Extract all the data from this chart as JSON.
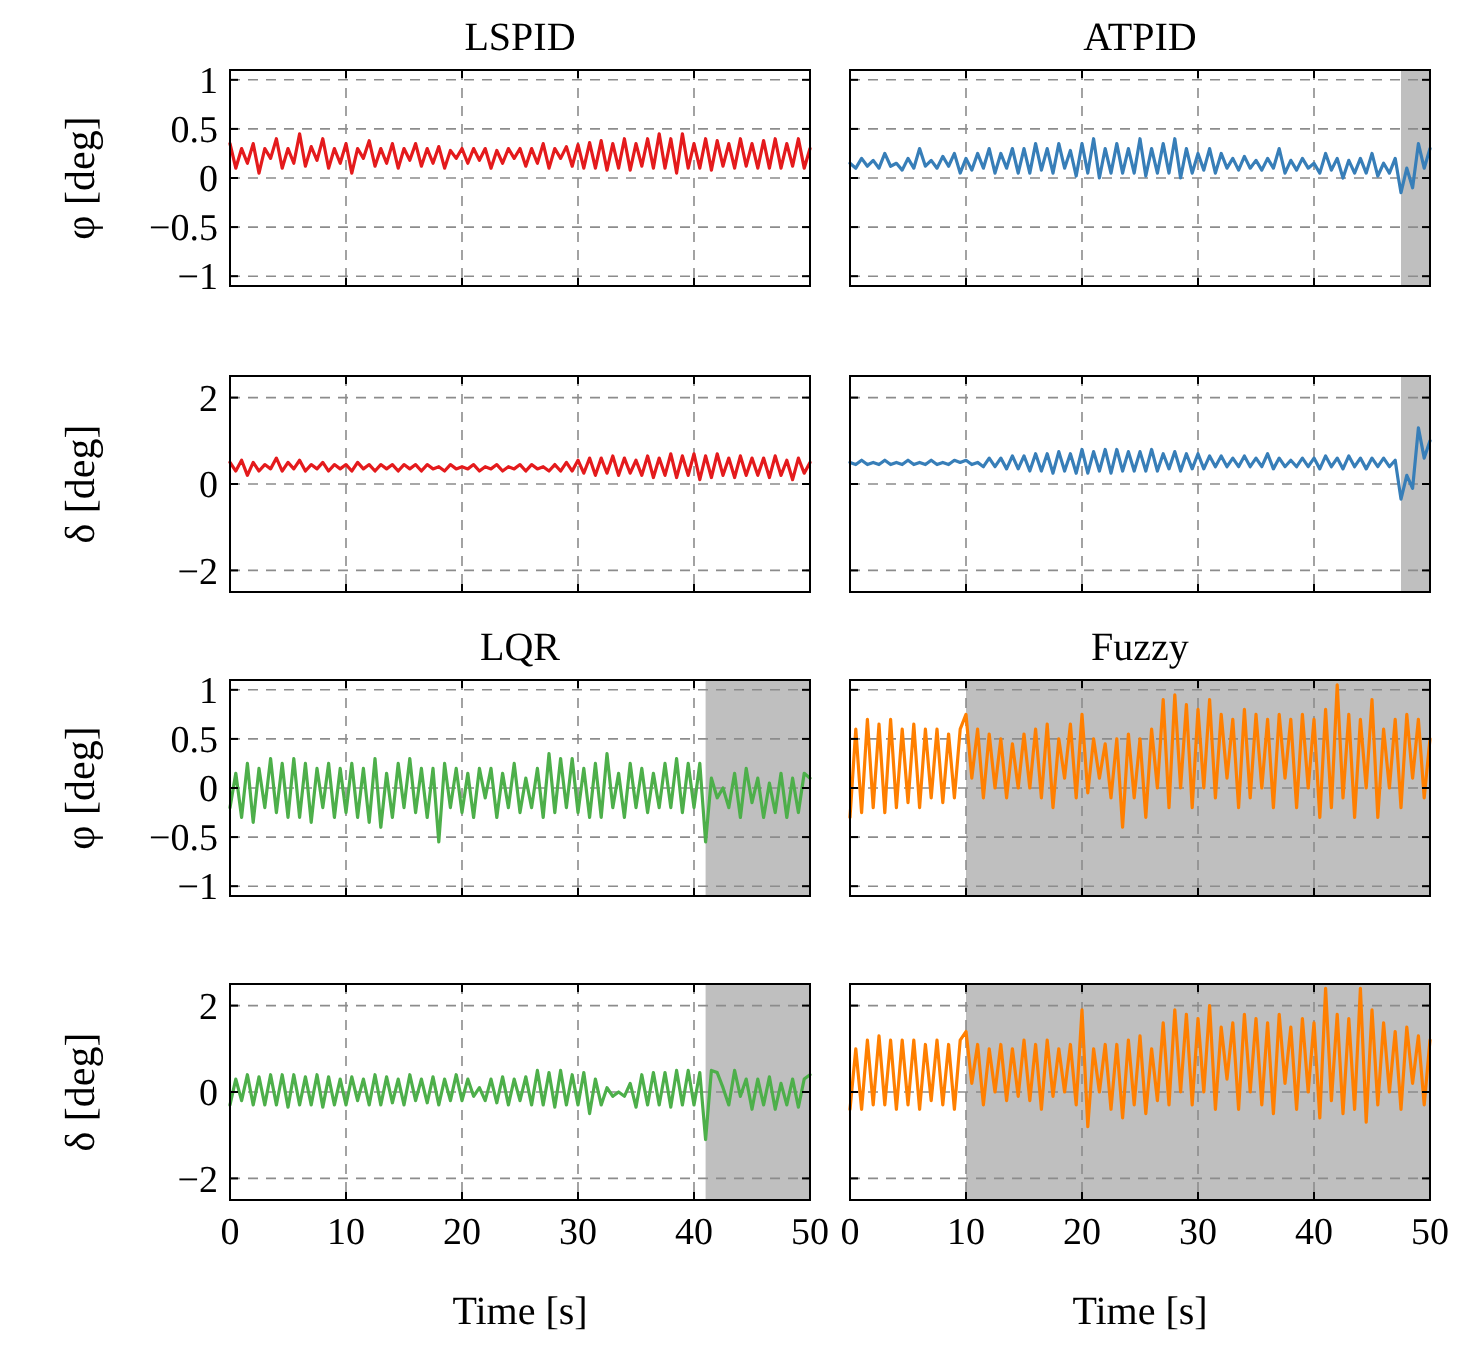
{
  "chart_data": [
    {
      "type": "line",
      "title": "LSPID",
      "ylabel": "φ [deg]",
      "tick_labels": "y",
      "grid": true,
      "xlim": [
        0,
        50
      ],
      "ylim": [
        -1.1,
        1.1
      ],
      "xticks": [
        0,
        10,
        20,
        30,
        40,
        50
      ],
      "yticks": [
        {
          "value": -1,
          "label": "−1"
        },
        {
          "value": -0.5,
          "label": "−0.5"
        },
        0,
        0.5,
        1
      ],
      "x": [
        0,
        0.5,
        1,
        1.5,
        2,
        2.5,
        3,
        3.5,
        4,
        4.5,
        5,
        5.5,
        6,
        6.5,
        7,
        7.5,
        8,
        8.5,
        9,
        9.5,
        10,
        10.5,
        11,
        11.5,
        12,
        12.5,
        13,
        13.5,
        14,
        14.5,
        15,
        15.5,
        16,
        16.5,
        17,
        17.5,
        18,
        18.5,
        19,
        19.5,
        20,
        20.5,
        21,
        21.5,
        22,
        22.5,
        23,
        23.5,
        24,
        24.5,
        25,
        25.5,
        26,
        26.5,
        27,
        27.5,
        28,
        28.5,
        29,
        29.5,
        30,
        30.5,
        31,
        31.5,
        32,
        32.5,
        33,
        33.5,
        34,
        34.5,
        35,
        35.5,
        36,
        36.5,
        37,
        37.5,
        38,
        38.5,
        39,
        39.5,
        40,
        40.5,
        41,
        41.5,
        42,
        42.5,
        43,
        43.5,
        44,
        44.5,
        45,
        45.5,
        46,
        46.5,
        47,
        47.5,
        48,
        48.5,
        49,
        49.5,
        50
      ],
      "series": [
        {
          "color": "#e41a1c",
          "values": [
            0.35,
            0.1,
            0.3,
            0.15,
            0.35,
            0.05,
            0.3,
            0.2,
            0.4,
            0.1,
            0.3,
            0.15,
            0.45,
            0.12,
            0.32,
            0.18,
            0.4,
            0.1,
            0.3,
            0.15,
            0.35,
            0.05,
            0.3,
            0.2,
            0.38,
            0.12,
            0.3,
            0.15,
            0.35,
            0.1,
            0.3,
            0.18,
            0.35,
            0.12,
            0.3,
            0.15,
            0.32,
            0.1,
            0.28,
            0.2,
            0.3,
            0.15,
            0.3,
            0.18,
            0.3,
            0.1,
            0.28,
            0.15,
            0.3,
            0.2,
            0.3,
            0.12,
            0.3,
            0.15,
            0.35,
            0.1,
            0.3,
            0.2,
            0.32,
            0.12,
            0.34,
            0.1,
            0.36,
            0.1,
            0.38,
            0.08,
            0.35,
            0.1,
            0.4,
            0.08,
            0.35,
            0.12,
            0.4,
            0.1,
            0.45,
            0.1,
            0.4,
            0.05,
            0.45,
            0.1,
            0.35,
            0.1,
            0.4,
            0.08,
            0.38,
            0.12,
            0.35,
            0.1,
            0.4,
            0.12,
            0.35,
            0.1,
            0.38,
            0.1,
            0.4,
            0.1,
            0.35,
            0.12,
            0.4,
            0.1,
            0.3
          ]
        }
      ]
    },
    {
      "type": "line",
      "title": "ATPID",
      "tick_labels": false,
      "grid": true,
      "xlim": [
        0,
        50
      ],
      "ylim": [
        -1.1,
        1.1
      ],
      "xticks": [
        0,
        10,
        20,
        30,
        40,
        50
      ],
      "yticks": [
        {
          "value": -1,
          "label": null
        },
        {
          "value": -0.5,
          "label": null
        },
        {
          "value": 0,
          "label": null
        },
        {
          "value": 0.5,
          "label": null
        },
        {
          "value": 1,
          "label": null
        }
      ],
      "bands": [
        {
          "axis": "x",
          "from": 47.5,
          "to": 50,
          "color": "#bfbfbf"
        }
      ],
      "x": [
        0,
        0.5,
        1,
        1.5,
        2,
        2.5,
        3,
        3.5,
        4,
        4.5,
        5,
        5.5,
        6,
        6.5,
        7,
        7.5,
        8,
        8.5,
        9,
        9.5,
        10,
        10.5,
        11,
        11.5,
        12,
        12.5,
        13,
        13.5,
        14,
        14.5,
        15,
        15.5,
        16,
        16.5,
        17,
        17.5,
        18,
        18.5,
        19,
        19.5,
        20,
        20.5,
        21,
        21.5,
        22,
        22.5,
        23,
        23.5,
        24,
        24.5,
        25,
        25.5,
        26,
        26.5,
        27,
        27.5,
        28,
        28.5,
        29,
        29.5,
        30,
        30.5,
        31,
        31.5,
        32,
        32.5,
        33,
        33.5,
        34,
        34.5,
        35,
        35.5,
        36,
        36.5,
        37,
        37.5,
        38,
        38.5,
        39,
        39.5,
        40,
        40.5,
        41,
        41.5,
        42,
        42.5,
        43,
        43.5,
        44,
        44.5,
        45,
        45.5,
        46,
        46.5,
        47,
        47.5,
        48,
        48.5,
        49,
        49.5,
        50
      ],
      "series": [
        {
          "color": "#377eb8",
          "values": [
            0.15,
            0.1,
            0.2,
            0.12,
            0.18,
            0.1,
            0.25,
            0.12,
            0.15,
            0.08,
            0.2,
            0.1,
            0.3,
            0.12,
            0.18,
            0.1,
            0.22,
            0.12,
            0.25,
            0.05,
            0.2,
            0.08,
            0.25,
            0.1,
            0.3,
            0.05,
            0.25,
            0.1,
            0.3,
            0.05,
            0.3,
            0.05,
            0.35,
            0.08,
            0.3,
            0.05,
            0.35,
            0.1,
            0.28,
            0.02,
            0.35,
            0.05,
            0.4,
            0.0,
            0.3,
            0.05,
            0.35,
            0.05,
            0.3,
            0.05,
            0.4,
            0.02,
            0.3,
            0.05,
            0.35,
            0.05,
            0.4,
            0.0,
            0.3,
            0.05,
            0.25,
            0.08,
            0.3,
            0.05,
            0.25,
            0.1,
            0.2,
            0.08,
            0.22,
            0.1,
            0.18,
            0.08,
            0.2,
            0.1,
            0.3,
            0.05,
            0.18,
            0.08,
            0.2,
            0.1,
            0.15,
            0.05,
            0.25,
            0.08,
            0.2,
            0.0,
            0.18,
            0.05,
            0.2,
            0.05,
            0.25,
            0.02,
            0.15,
            0.05,
            0.2,
            -0.15,
            0.1,
            -0.1,
            0.35,
            0.1,
            0.3
          ]
        }
      ]
    },
    {
      "type": "line",
      "ylabel": "δ [deg]",
      "tick_labels": "y",
      "grid": true,
      "xlim": [
        0,
        50
      ],
      "ylim": [
        -2.5,
        2.5
      ],
      "xticks": [
        0,
        10,
        20,
        30,
        40,
        50
      ],
      "yticks": [
        {
          "value": -2,
          "label": "−2"
        },
        0,
        2
      ],
      "x": [
        0,
        0.5,
        1,
        1.5,
        2,
        2.5,
        3,
        3.5,
        4,
        4.5,
        5,
        5.5,
        6,
        6.5,
        7,
        7.5,
        8,
        8.5,
        9,
        9.5,
        10,
        10.5,
        11,
        11.5,
        12,
        12.5,
        13,
        13.5,
        14,
        14.5,
        15,
        15.5,
        16,
        16.5,
        17,
        17.5,
        18,
        18.5,
        19,
        19.5,
        20,
        20.5,
        21,
        21.5,
        22,
        22.5,
        23,
        23.5,
        24,
        24.5,
        25,
        25.5,
        26,
        26.5,
        27,
        27.5,
        28,
        28.5,
        29,
        29.5,
        30,
        30.5,
        31,
        31.5,
        32,
        32.5,
        33,
        33.5,
        34,
        34.5,
        35,
        35.5,
        36,
        36.5,
        37,
        37.5,
        38,
        38.5,
        39,
        39.5,
        40,
        40.5,
        41,
        41.5,
        42,
        42.5,
        43,
        43.5,
        44,
        44.5,
        45,
        45.5,
        46,
        46.5,
        47,
        47.5,
        48,
        48.5,
        49,
        49.5,
        50
      ],
      "series": [
        {
          "color": "#e41a1c",
          "values": [
            0.5,
            0.3,
            0.55,
            0.2,
            0.5,
            0.3,
            0.45,
            0.35,
            0.6,
            0.3,
            0.5,
            0.35,
            0.55,
            0.3,
            0.45,
            0.35,
            0.5,
            0.3,
            0.45,
            0.35,
            0.45,
            0.3,
            0.5,
            0.35,
            0.45,
            0.3,
            0.45,
            0.35,
            0.45,
            0.3,
            0.45,
            0.35,
            0.45,
            0.3,
            0.45,
            0.35,
            0.4,
            0.3,
            0.45,
            0.35,
            0.4,
            0.35,
            0.45,
            0.3,
            0.4,
            0.35,
            0.45,
            0.3,
            0.4,
            0.35,
            0.45,
            0.3,
            0.45,
            0.35,
            0.4,
            0.3,
            0.45,
            0.3,
            0.5,
            0.3,
            0.55,
            0.25,
            0.6,
            0.2,
            0.6,
            0.25,
            0.65,
            0.2,
            0.6,
            0.25,
            0.55,
            0.2,
            0.65,
            0.15,
            0.6,
            0.2,
            0.7,
            0.15,
            0.65,
            0.2,
            0.7,
            0.1,
            0.65,
            0.15,
            0.7,
            0.2,
            0.6,
            0.15,
            0.65,
            0.2,
            0.6,
            0.2,
            0.6,
            0.15,
            0.65,
            0.2,
            0.55,
            0.1,
            0.6,
            0.25,
            0.5
          ]
        }
      ]
    },
    {
      "type": "line",
      "tick_labels": false,
      "grid": true,
      "xlim": [
        0,
        50
      ],
      "ylim": [
        -2.5,
        2.5
      ],
      "xticks": [
        0,
        10,
        20,
        30,
        40,
        50
      ],
      "yticks": [
        {
          "value": -2,
          "label": null
        },
        {
          "value": 0,
          "label": null
        },
        {
          "value": 2,
          "label": null
        }
      ],
      "bands": [
        {
          "axis": "x",
          "from": 47.5,
          "to": 50,
          "color": "#bfbfbf"
        }
      ],
      "x": [
        0,
        0.5,
        1,
        1.5,
        2,
        2.5,
        3,
        3.5,
        4,
        4.5,
        5,
        5.5,
        6,
        6.5,
        7,
        7.5,
        8,
        8.5,
        9,
        9.5,
        10,
        10.5,
        11,
        11.5,
        12,
        12.5,
        13,
        13.5,
        14,
        14.5,
        15,
        15.5,
        16,
        16.5,
        17,
        17.5,
        18,
        18.5,
        19,
        19.5,
        20,
        20.5,
        21,
        21.5,
        22,
        22.5,
        23,
        23.5,
        24,
        24.5,
        25,
        25.5,
        26,
        26.5,
        27,
        27.5,
        28,
        28.5,
        29,
        29.5,
        30,
        30.5,
        31,
        31.5,
        32,
        32.5,
        33,
        33.5,
        34,
        34.5,
        35,
        35.5,
        36,
        36.5,
        37,
        37.5,
        38,
        38.5,
        39,
        39.5,
        40,
        40.5,
        41,
        41.5,
        42,
        42.5,
        43,
        43.5,
        44,
        44.5,
        45,
        45.5,
        46,
        46.5,
        47,
        47.5,
        48,
        48.5,
        49,
        49.5,
        50
      ],
      "series": [
        {
          "color": "#377eb8",
          "values": [
            0.5,
            0.45,
            0.55,
            0.45,
            0.5,
            0.45,
            0.55,
            0.45,
            0.5,
            0.45,
            0.55,
            0.45,
            0.5,
            0.45,
            0.55,
            0.45,
            0.5,
            0.45,
            0.55,
            0.5,
            0.55,
            0.45,
            0.5,
            0.4,
            0.6,
            0.4,
            0.6,
            0.35,
            0.65,
            0.35,
            0.65,
            0.3,
            0.7,
            0.3,
            0.7,
            0.25,
            0.75,
            0.3,
            0.7,
            0.25,
            0.8,
            0.25,
            0.75,
            0.3,
            0.8,
            0.25,
            0.8,
            0.3,
            0.75,
            0.3,
            0.75,
            0.3,
            0.8,
            0.3,
            0.7,
            0.35,
            0.75,
            0.3,
            0.7,
            0.35,
            0.7,
            0.35,
            0.65,
            0.4,
            0.65,
            0.4,
            0.6,
            0.4,
            0.65,
            0.4,
            0.6,
            0.4,
            0.7,
            0.35,
            0.6,
            0.4,
            0.55,
            0.4,
            0.6,
            0.4,
            0.6,
            0.35,
            0.65,
            0.4,
            0.6,
            0.35,
            0.65,
            0.4,
            0.6,
            0.35,
            0.6,
            0.4,
            0.6,
            0.4,
            0.55,
            -0.35,
            0.2,
            -0.1,
            1.3,
            0.6,
            1.0
          ]
        }
      ]
    },
    {
      "type": "line",
      "title": "LQR",
      "ylabel": "φ [deg]",
      "tick_labels": "y",
      "grid": true,
      "xlim": [
        0,
        50
      ],
      "ylim": [
        -1.1,
        1.1
      ],
      "xticks": [
        0,
        10,
        20,
        30,
        40,
        50
      ],
      "yticks": [
        {
          "value": -1,
          "label": "−1"
        },
        {
          "value": -0.5,
          "label": "−0.5"
        },
        0,
        0.5,
        1
      ],
      "bands": [
        {
          "axis": "x",
          "from": 41,
          "to": 50,
          "color": "#bfbfbf"
        }
      ],
      "x": [
        0,
        0.5,
        1,
        1.5,
        2,
        2.5,
        3,
        3.5,
        4,
        4.5,
        5,
        5.5,
        6,
        6.5,
        7,
        7.5,
        8,
        8.5,
        9,
        9.5,
        10,
        10.5,
        11,
        11.5,
        12,
        12.5,
        13,
        13.5,
        14,
        14.5,
        15,
        15.5,
        16,
        16.5,
        17,
        17.5,
        18,
        18.5,
        19,
        19.5,
        20,
        20.5,
        21,
        21.5,
        22,
        22.5,
        23,
        23.5,
        24,
        24.5,
        25,
        25.5,
        26,
        26.5,
        27,
        27.5,
        28,
        28.5,
        29,
        29.5,
        30,
        30.5,
        31,
        31.5,
        32,
        32.5,
        33,
        33.5,
        34,
        34.5,
        35,
        35.5,
        36,
        36.5,
        37,
        37.5,
        38,
        38.5,
        39,
        39.5,
        40,
        40.5,
        41,
        41.5,
        42,
        42.5,
        43,
        43.5,
        44,
        44.5,
        45,
        45.5,
        46,
        46.5,
        47,
        47.5,
        48,
        48.5,
        49,
        49.5,
        50
      ],
      "series": [
        {
          "color": "#4daf4a",
          "values": [
            -0.2,
            0.15,
            -0.3,
            0.25,
            -0.35,
            0.2,
            -0.2,
            0.3,
            -0.25,
            0.25,
            -0.3,
            0.3,
            -0.3,
            0.25,
            -0.35,
            0.2,
            -0.2,
            0.25,
            -0.3,
            0.2,
            -0.25,
            0.25,
            -0.3,
            0.2,
            -0.35,
            0.3,
            -0.4,
            0.15,
            -0.3,
            0.25,
            -0.2,
            0.3,
            -0.25,
            0.2,
            -0.3,
            0.2,
            -0.55,
            0.25,
            -0.2,
            0.2,
            -0.25,
            0.15,
            -0.3,
            0.2,
            -0.1,
            0.2,
            -0.3,
            0.15,
            -0.2,
            0.25,
            -0.25,
            0.1,
            -0.2,
            0.2,
            -0.3,
            0.35,
            -0.25,
            0.3,
            -0.2,
            0.3,
            -0.25,
            0.2,
            -0.3,
            0.25,
            -0.3,
            0.35,
            -0.2,
            0.15,
            -0.3,
            0.25,
            -0.2,
            0.2,
            -0.25,
            0.15,
            -0.2,
            0.25,
            -0.2,
            0.3,
            -0.25,
            0.25,
            -0.2,
            0.25,
            -0.55,
            0.1,
            -0.1,
            0.0,
            -0.2,
            0.15,
            -0.3,
            0.2,
            -0.15,
            0.1,
            -0.3,
            0.05,
            -0.25,
            0.15,
            -0.3,
            0.1,
            -0.25,
            0.15,
            0.1
          ]
        }
      ]
    },
    {
      "type": "line",
      "title": "Fuzzy",
      "tick_labels": false,
      "grid": true,
      "xlim": [
        0,
        50
      ],
      "ylim": [
        -1.1,
        1.1
      ],
      "xticks": [
        0,
        10,
        20,
        30,
        40,
        50
      ],
      "yticks": [
        {
          "value": -1,
          "label": null
        },
        {
          "value": -0.5,
          "label": null
        },
        {
          "value": 0,
          "label": null
        },
        {
          "value": 0.5,
          "label": null
        },
        {
          "value": 1,
          "label": null
        }
      ],
      "bands": [
        {
          "axis": "x",
          "from": 10,
          "to": 50,
          "color": "#bfbfbf"
        }
      ],
      "x": [
        0,
        0.5,
        1,
        1.5,
        2,
        2.5,
        3,
        3.5,
        4,
        4.5,
        5,
        5.5,
        6,
        6.5,
        7,
        7.5,
        8,
        8.5,
        9,
        9.5,
        10,
        10.5,
        11,
        11.5,
        12,
        12.5,
        13,
        13.5,
        14,
        14.5,
        15,
        15.5,
        16,
        16.5,
        17,
        17.5,
        18,
        18.5,
        19,
        19.5,
        20,
        20.5,
        21,
        21.5,
        22,
        22.5,
        23,
        23.5,
        24,
        24.5,
        25,
        25.5,
        26,
        26.5,
        27,
        27.5,
        28,
        28.5,
        29,
        29.5,
        30,
        30.5,
        31,
        31.5,
        32,
        32.5,
        33,
        33.5,
        34,
        34.5,
        35,
        35.5,
        36,
        36.5,
        37,
        37.5,
        38,
        38.5,
        39,
        39.5,
        40,
        40.5,
        41,
        41.5,
        42,
        42.5,
        43,
        43.5,
        44,
        44.5,
        45,
        45.5,
        46,
        46.5,
        47,
        47.5,
        48,
        48.5,
        49,
        49.5,
        50
      ],
      "series": [
        {
          "color": "#ff7f00",
          "values": [
            -0.3,
            0.6,
            -0.25,
            0.7,
            -0.2,
            0.65,
            -0.25,
            0.7,
            -0.2,
            0.6,
            -0.15,
            0.65,
            -0.2,
            0.6,
            -0.1,
            0.6,
            -0.15,
            0.55,
            -0.1,
            0.6,
            0.75,
            0.1,
            0.6,
            -0.1,
            0.55,
            0.0,
            0.5,
            -0.1,
            0.45,
            0.0,
            0.55,
            0.0,
            0.6,
            -0.1,
            0.65,
            -0.2,
            0.5,
            0.1,
            0.65,
            -0.1,
            0.75,
            -0.05,
            0.5,
            0.1,
            0.45,
            -0.1,
            0.5,
            -0.4,
            0.55,
            -0.1,
            0.5,
            -0.3,
            0.6,
            0.0,
            0.9,
            -0.2,
            0.95,
            0.0,
            0.85,
            -0.2,
            0.8,
            0.0,
            0.9,
            -0.1,
            0.75,
            0.1,
            0.7,
            -0.2,
            0.8,
            -0.1,
            0.75,
            0.0,
            0.7,
            -0.2,
            0.75,
            0.1,
            0.7,
            -0.2,
            0.75,
            0.0,
            0.7,
            -0.3,
            0.8,
            -0.2,
            1.05,
            -0.1,
            0.75,
            -0.3,
            0.7,
            0.0,
            0.9,
            -0.3,
            0.6,
            0.0,
            0.7,
            -0.2,
            0.75,
            0.1,
            0.7,
            -0.1,
            0.5
          ]
        }
      ]
    },
    {
      "type": "line",
      "ylabel": "δ [deg]",
      "xlabel": "Time [s]",
      "grid": true,
      "xlim": [
        0,
        50
      ],
      "ylim": [
        -2.5,
        2.5
      ],
      "xticks": [
        0,
        10,
        20,
        30,
        40,
        50
      ],
      "yticks": [
        {
          "value": -2,
          "label": "−2"
        },
        0,
        2
      ],
      "bands": [
        {
          "axis": "x",
          "from": 41,
          "to": 50,
          "color": "#bfbfbf"
        }
      ],
      "x": [
        0,
        0.5,
        1,
        1.5,
        2,
        2.5,
        3,
        3.5,
        4,
        4.5,
        5,
        5.5,
        6,
        6.5,
        7,
        7.5,
        8,
        8.5,
        9,
        9.5,
        10,
        10.5,
        11,
        11.5,
        12,
        12.5,
        13,
        13.5,
        14,
        14.5,
        15,
        15.5,
        16,
        16.5,
        17,
        17.5,
        18,
        18.5,
        19,
        19.5,
        20,
        20.5,
        21,
        21.5,
        22,
        22.5,
        23,
        23.5,
        24,
        24.5,
        25,
        25.5,
        26,
        26.5,
        27,
        27.5,
        28,
        28.5,
        29,
        29.5,
        30,
        30.5,
        31,
        31.5,
        32,
        32.5,
        33,
        33.5,
        34,
        34.5,
        35,
        35.5,
        36,
        36.5,
        37,
        37.5,
        38,
        38.5,
        39,
        39.5,
        40,
        40.5,
        41,
        41.5,
        42,
        42.5,
        43,
        43.5,
        44,
        44.5,
        45,
        45.5,
        46,
        46.5,
        47,
        47.5,
        48,
        48.5,
        49,
        49.5,
        50
      ],
      "series": [
        {
          "color": "#4daf4a",
          "values": [
            -0.3,
            0.3,
            -0.2,
            0.4,
            -0.3,
            0.35,
            -0.3,
            0.4,
            -0.3,
            0.4,
            -0.35,
            0.4,
            -0.3,
            0.35,
            -0.3,
            0.4,
            -0.35,
            0.35,
            -0.3,
            0.3,
            -0.3,
            0.35,
            -0.2,
            0.3,
            -0.3,
            0.4,
            -0.3,
            0.35,
            -0.25,
            0.3,
            -0.3,
            0.4,
            -0.2,
            0.3,
            -0.25,
            0.35,
            -0.3,
            0.3,
            -0.2,
            0.4,
            -0.2,
            0.3,
            -0.1,
            0.1,
            -0.2,
            0.3,
            -0.25,
            0.35,
            -0.3,
            0.3,
            -0.2,
            0.35,
            -0.3,
            0.5,
            -0.3,
            0.45,
            -0.35,
            0.5,
            -0.3,
            0.4,
            -0.3,
            0.45,
            -0.5,
            0.3,
            -0.3,
            0.1,
            -0.1,
            0.0,
            -0.1,
            0.2,
            -0.35,
            0.4,
            -0.3,
            0.45,
            -0.3,
            0.45,
            -0.35,
            0.5,
            -0.3,
            0.5,
            -0.3,
            0.45,
            -1.1,
            0.5,
            0.45,
            0.1,
            -0.3,
            0.5,
            -0.1,
            0.3,
            -0.4,
            0.3,
            -0.3,
            0.35,
            -0.4,
            0.2,
            -0.3,
            0.3,
            -0.35,
            0.3,
            0.4
          ]
        }
      ]
    },
    {
      "type": "line",
      "xlabel": "Time [s]",
      "tick_labels": "x",
      "grid": true,
      "xlim": [
        0,
        50
      ],
      "ylim": [
        -2.5,
        2.5
      ],
      "xticks": [
        0,
        10,
        20,
        30,
        40,
        50
      ],
      "yticks": [
        {
          "value": -2,
          "label": null
        },
        {
          "value": 0,
          "label": null
        },
        {
          "value": 2,
          "label": null
        }
      ],
      "bands": [
        {
          "axis": "x",
          "from": 10,
          "to": 50,
          "color": "#bfbfbf"
        }
      ],
      "x": [
        0,
        0.5,
        1,
        1.5,
        2,
        2.5,
        3,
        3.5,
        4,
        4.5,
        5,
        5.5,
        6,
        6.5,
        7,
        7.5,
        8,
        8.5,
        9,
        9.5,
        10,
        10.5,
        11,
        11.5,
        12,
        12.5,
        13,
        13.5,
        14,
        14.5,
        15,
        15.5,
        16,
        16.5,
        17,
        17.5,
        18,
        18.5,
        19,
        19.5,
        20,
        20.5,
        21,
        21.5,
        22,
        22.5,
        23,
        23.5,
        24,
        24.5,
        25,
        25.5,
        26,
        26.5,
        27,
        27.5,
        28,
        28.5,
        29,
        29.5,
        30,
        30.5,
        31,
        31.5,
        32,
        32.5,
        33,
        33.5,
        34,
        34.5,
        35,
        35.5,
        36,
        36.5,
        37,
        37.5,
        38,
        38.5,
        39,
        39.5,
        40,
        40.5,
        41,
        41.5,
        42,
        42.5,
        43,
        43.5,
        44,
        44.5,
        45,
        45.5,
        46,
        46.5,
        47,
        47.5,
        48,
        48.5,
        49,
        49.5,
        50
      ],
      "series": [
        {
          "color": "#ff7f00",
          "values": [
            -0.4,
            1.0,
            -0.4,
            1.2,
            -0.3,
            1.3,
            -0.3,
            1.2,
            -0.4,
            1.2,
            -0.3,
            1.2,
            -0.4,
            1.1,
            -0.2,
            1.2,
            -0.3,
            1.1,
            -0.4,
            1.2,
            1.4,
            0.2,
            1.1,
            -0.3,
            1.0,
            0.0,
            1.1,
            -0.2,
            1.0,
            -0.1,
            1.2,
            -0.2,
            1.1,
            -0.4,
            1.2,
            -0.1,
            1.0,
            0.0,
            1.1,
            -0.3,
            1.9,
            -0.8,
            1.0,
            0.0,
            1.1,
            -0.4,
            1.1,
            -0.6,
            1.2,
            -0.3,
            1.3,
            -0.5,
            1.0,
            -0.2,
            1.6,
            -0.3,
            1.9,
            0.0,
            1.8,
            -0.3,
            1.7,
            0.0,
            2.0,
            -0.4,
            1.5,
            0.3,
            1.6,
            -0.4,
            1.8,
            0.0,
            1.7,
            -0.3,
            1.6,
            -0.5,
            1.8,
            0.2,
            1.5,
            -0.4,
            1.7,
            0.0,
            1.6,
            -0.6,
            2.4,
            -0.2,
            1.8,
            -0.5,
            1.7,
            -0.4,
            2.4,
            -0.7,
            1.9,
            -0.3,
            1.6,
            0.0,
            1.4,
            -0.4,
            1.5,
            0.2,
            1.3,
            -0.3,
            1.2
          ]
        }
      ]
    }
  ]
}
